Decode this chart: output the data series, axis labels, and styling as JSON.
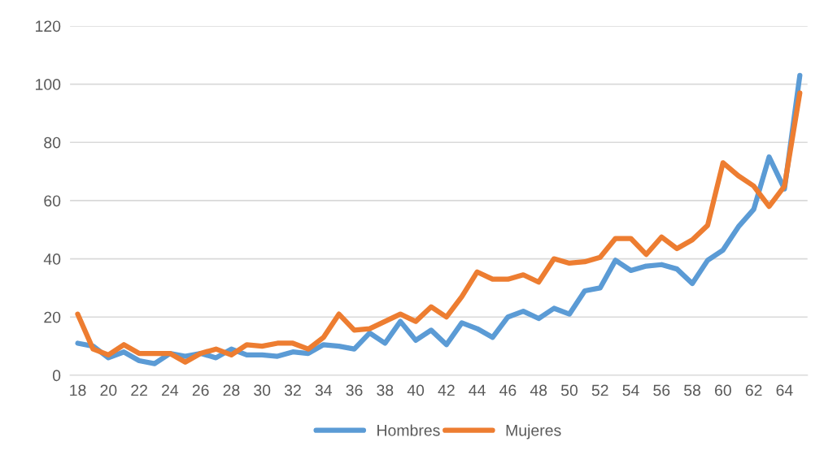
{
  "chart_data": {
    "type": "line",
    "categories": [
      "18",
      null,
      "20",
      null,
      "22",
      null,
      "24",
      null,
      "26",
      null,
      "28",
      null,
      "30",
      null,
      "32",
      null,
      "34",
      null,
      "36",
      null,
      "38",
      null,
      "40",
      null,
      "42",
      null,
      "44",
      null,
      "46",
      null,
      "48",
      null,
      "50",
      null,
      "52",
      null,
      "54",
      null,
      "56",
      null,
      "58",
      null,
      "60",
      null,
      "62",
      null,
      "64",
      null
    ],
    "series": [
      {
        "name": "Hombres",
        "color": "#5b9bd5",
        "values": [
          11,
          10,
          6,
          8,
          5,
          4,
          7.5,
          6.5,
          7.5,
          6,
          9,
          7,
          7,
          6.5,
          8,
          7.5,
          10.5,
          10,
          9,
          14.5,
          11,
          18.5,
          12,
          15.5,
          10.5,
          18,
          16,
          13,
          20,
          22,
          19.5,
          23,
          21,
          29,
          30,
          39.5,
          36,
          37.5,
          38,
          36.5,
          31.5,
          39.5,
          43,
          51,
          57,
          75,
          64,
          103
        ]
      },
      {
        "name": "Mujeres",
        "color": "#ed7d31",
        "values": [
          21,
          9,
          7,
          10.5,
          7.5,
          7.5,
          7.5,
          4.5,
          7.5,
          9,
          7,
          10.5,
          10,
          11,
          11,
          9,
          13,
          21,
          15.5,
          16,
          18.5,
          21,
          18.5,
          23.5,
          20,
          27,
          35.5,
          33,
          33,
          34.5,
          32,
          40,
          38.5,
          39,
          40.5,
          47,
          47,
          41.5,
          47.5,
          43.5,
          46.5,
          51.5,
          73,
          68.5,
          65,
          58,
          65,
          97
        ]
      }
    ],
    "ylim": [
      0,
      120
    ],
    "yticks": [
      0,
      20,
      40,
      60,
      80,
      100,
      120
    ],
    "grid": "y",
    "legend": "bottom",
    "marker": "none",
    "line_style": "solid"
  }
}
